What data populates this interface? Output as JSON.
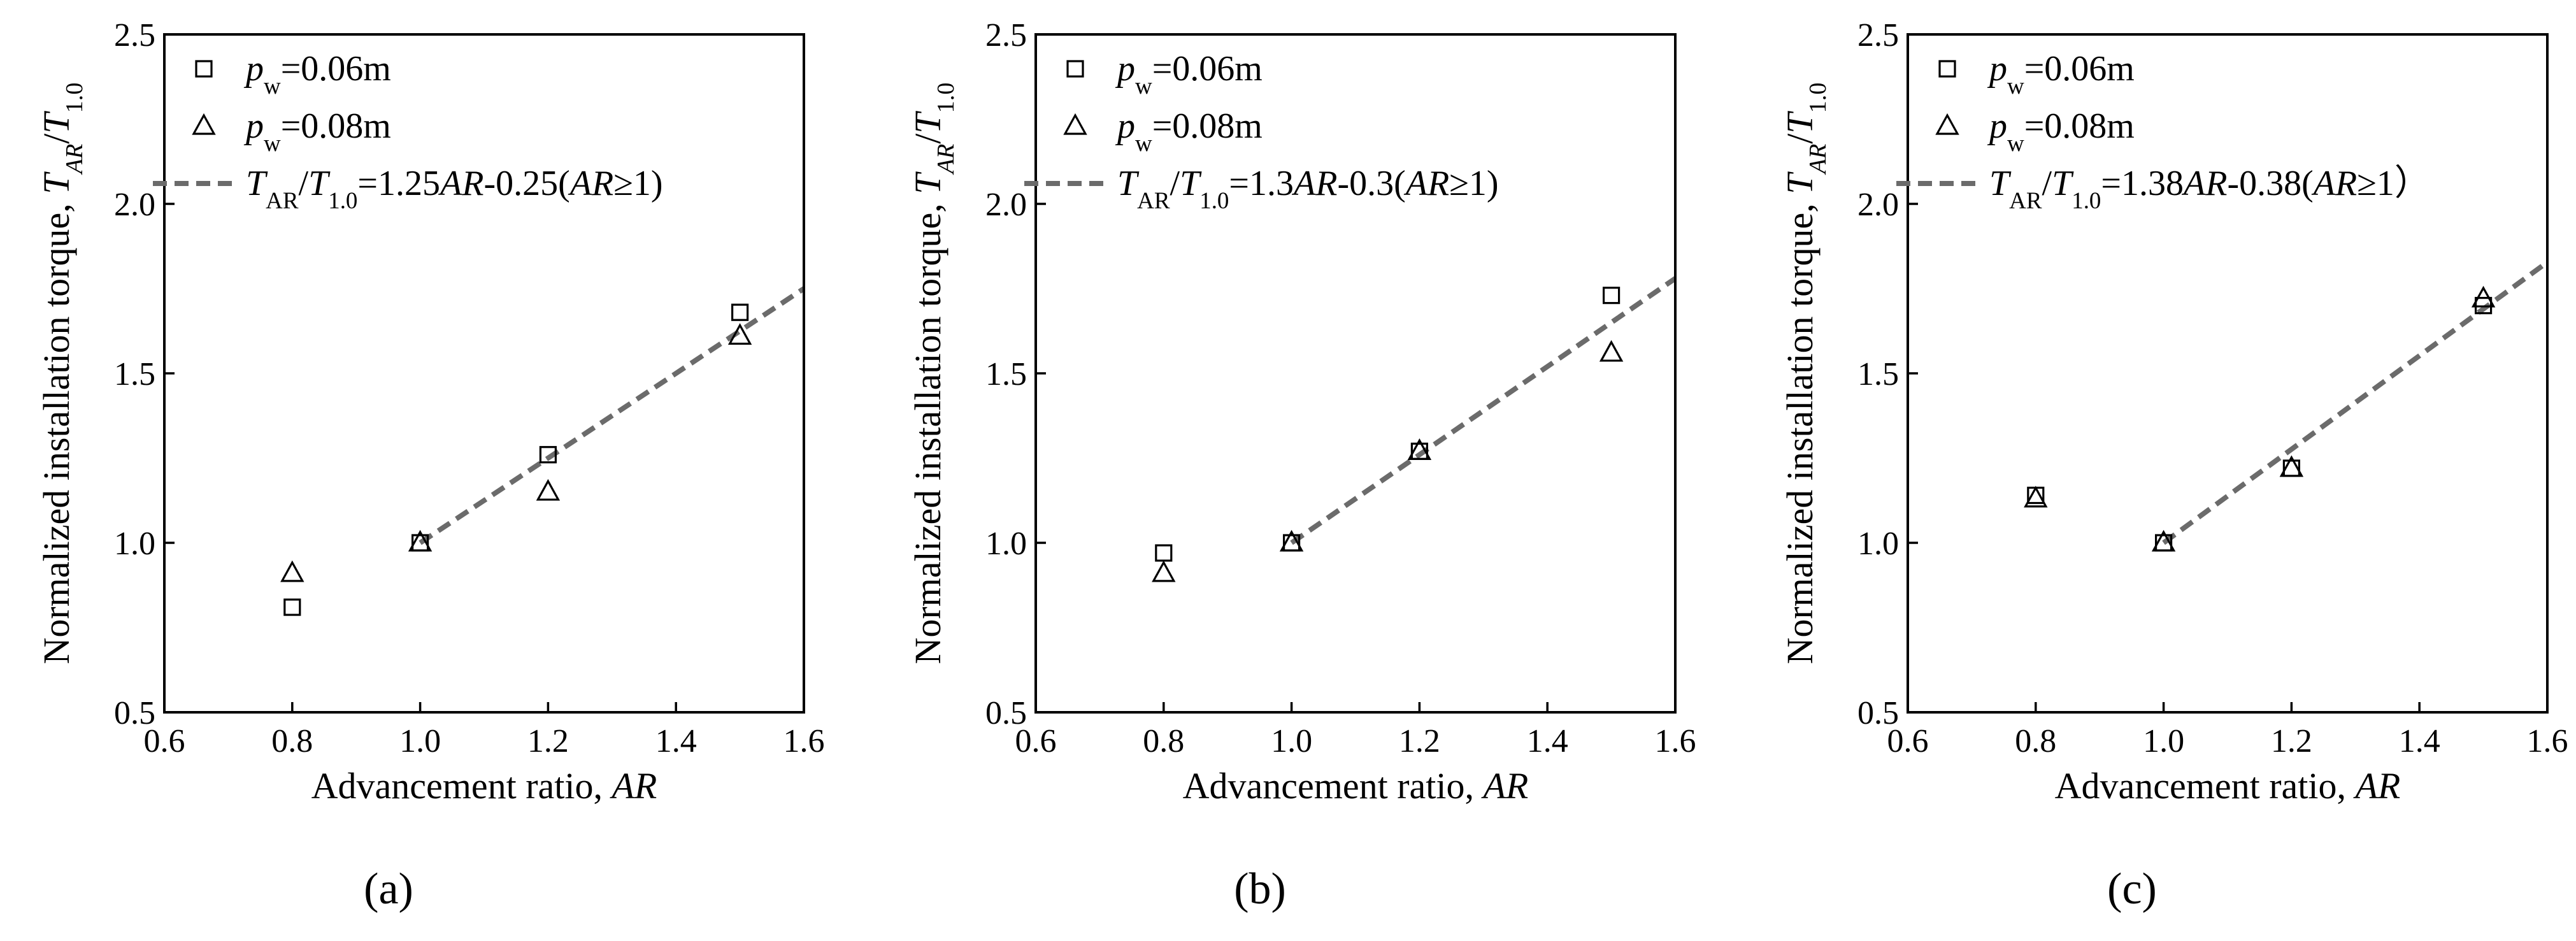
{
  "chart_data": [
    {
      "type": "scatter",
      "panel_label": [
        "(",
        "a",
        ")"
      ],
      "xlabel": [
        "Advancement ratio, ",
        "AR"
      ],
      "ylabel": [
        "Normalized installation torque, ",
        "T",
        "AR",
        "/",
        "T",
        "1.0"
      ],
      "xlim": [
        0.6,
        1.6
      ],
      "ylim": [
        0.5,
        2.5
      ],
      "xticks": [
        "0.6",
        "0.8",
        "1.0",
        "1.2",
        "1.4",
        "1.6"
      ],
      "yticks": [
        "0.5",
        "1.0",
        "1.5",
        "2.0",
        "2.5"
      ],
      "grid": false,
      "legend_position": "top-left",
      "series": [
        {
          "name": [
            "p",
            "w",
            "=0.06m"
          ],
          "marker": "square",
          "x": [
            0.8,
            1.0,
            1.2,
            1.5
          ],
          "y": [
            0.81,
            1.0,
            1.26,
            1.68
          ]
        },
        {
          "name": [
            "p",
            "w",
            "=0.08m"
          ],
          "marker": "triangle",
          "x": [
            0.8,
            1.0,
            1.2,
            1.5
          ],
          "y": [
            0.91,
            1.0,
            1.15,
            1.61
          ]
        }
      ],
      "fit": {
        "name": [
          "T",
          "AR",
          "/",
          "T",
          "1.0",
          "=1.25",
          "AR",
          "-0.25(",
          "AR",
          "≥1)"
        ],
        "slope": 1.25,
        "intercept": -0.25,
        "x_range": [
          1.0,
          1.6
        ],
        "color": "#6b6b6b"
      }
    },
    {
      "type": "scatter",
      "panel_label": [
        "(",
        "b",
        ")"
      ],
      "xlabel": [
        "Advancement ratio, ",
        "AR"
      ],
      "ylabel": [
        "Normalized installation torque, ",
        "T",
        "AR",
        "/",
        "T",
        "1.0"
      ],
      "xlim": [
        0.6,
        1.6
      ],
      "ylim": [
        0.5,
        2.5
      ],
      "xticks": [
        "0.6",
        "0.8",
        "1.0",
        "1.2",
        "1.4",
        "1.6"
      ],
      "yticks": [
        "0.5",
        "1.0",
        "1.5",
        "2.0",
        "2.5"
      ],
      "grid": false,
      "legend_position": "top-left",
      "series": [
        {
          "name": [
            "p",
            "w",
            "=0.06m"
          ],
          "marker": "square",
          "x": [
            0.8,
            1.0,
            1.2,
            1.5
          ],
          "y": [
            0.97,
            1.0,
            1.27,
            1.73
          ]
        },
        {
          "name": [
            "p",
            "w",
            "=0.08m"
          ],
          "marker": "triangle",
          "x": [
            0.8,
            1.0,
            1.2,
            1.5
          ],
          "y": [
            0.91,
            1.0,
            1.27,
            1.56
          ]
        }
      ],
      "fit": {
        "name": [
          "T",
          "AR",
          "/",
          "T",
          "1.0",
          "=1.3",
          "AR",
          "-0.3(",
          "AR",
          "≥1)"
        ],
        "slope": 1.3,
        "intercept": -0.3,
        "x_range": [
          1.0,
          1.6
        ],
        "color": "#6b6b6b"
      }
    },
    {
      "type": "scatter",
      "panel_label": [
        "(",
        "c",
        ")"
      ],
      "xlabel": [
        "Advancement ratio, ",
        "AR"
      ],
      "ylabel": [
        "Normalized installation torque, ",
        "T",
        "AR",
        "/",
        "T",
        "1.0"
      ],
      "xlim": [
        0.6,
        1.6
      ],
      "ylim": [
        0.5,
        2.5
      ],
      "xticks": [
        "0.6",
        "0.8",
        "1.0",
        "1.2",
        "1.4",
        "1.6"
      ],
      "yticks": [
        "0.5",
        "1.0",
        "1.5",
        "2.0",
        "2.5"
      ],
      "grid": false,
      "legend_position": "top-left",
      "series": [
        {
          "name": [
            "p",
            "w",
            "=0.06m"
          ],
          "marker": "square",
          "x": [
            0.8,
            1.0,
            1.2,
            1.5
          ],
          "y": [
            1.14,
            1.0,
            1.22,
            1.7
          ]
        },
        {
          "name": [
            "p",
            "w",
            "=0.08m"
          ],
          "marker": "triangle",
          "x": [
            0.8,
            1.0,
            1.2,
            1.5
          ],
          "y": [
            1.13,
            1.0,
            1.22,
            1.72
          ]
        }
      ],
      "fit": {
        "name": [
          "T",
          "AR",
          "/",
          "T",
          "1.0",
          "=1.38",
          "AR",
          "-0.38(",
          "AR",
          "≥1）"
        ],
        "slope": 1.38,
        "intercept": -0.38,
        "x_range": [
          1.0,
          1.6
        ],
        "color": "#6b6b6b"
      }
    }
  ]
}
